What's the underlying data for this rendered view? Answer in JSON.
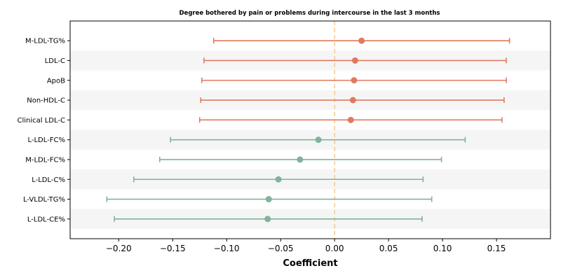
{
  "chart_data": {
    "type": "forest",
    "title": "Degree bothered by pain or problems during intercourse in the last 3 months",
    "xlabel": "Coefficient",
    "xlim": [
      -0.245,
      0.2
    ],
    "xticks": [
      -0.2,
      -0.15,
      -0.1,
      -0.05,
      0.0,
      0.05,
      0.1,
      0.15
    ],
    "xtick_labels": [
      "−0.20",
      "−0.15",
      "−0.10",
      "−0.05",
      "0.00",
      "0.05",
      "0.10",
      "0.15"
    ],
    "reference_line": 0.0,
    "colors": {
      "positive": "#E07A5F",
      "negative": "#81B29A",
      "reference": "#F4C98E",
      "band": "#F5F5F5"
    },
    "items": [
      {
        "label": "M-LDL-TG%",
        "estimate": 0.025,
        "lower": -0.112,
        "upper": 0.162
      },
      {
        "label": "LDL-C",
        "estimate": 0.019,
        "lower": -0.121,
        "upper": 0.159
      },
      {
        "label": "ApoB",
        "estimate": 0.018,
        "lower": -0.123,
        "upper": 0.159
      },
      {
        "label": "Non-HDL-C",
        "estimate": 0.017,
        "lower": -0.124,
        "upper": 0.157
      },
      {
        "label": "Clinical LDL-C",
        "estimate": 0.015,
        "lower": -0.125,
        "upper": 0.155
      },
      {
        "label": "L-LDL-FC%",
        "estimate": -0.015,
        "lower": -0.152,
        "upper": 0.121
      },
      {
        "label": "M-LDL-FC%",
        "estimate": -0.032,
        "lower": -0.162,
        "upper": 0.099
      },
      {
        "label": "L-LDL-C%",
        "estimate": -0.052,
        "lower": -0.186,
        "upper": 0.082
      },
      {
        "label": "L-VLDL-TG%",
        "estimate": -0.061,
        "lower": -0.211,
        "upper": 0.09
      },
      {
        "label": "L-LDL-CE%",
        "estimate": -0.062,
        "lower": -0.204,
        "upper": 0.081
      }
    ]
  }
}
